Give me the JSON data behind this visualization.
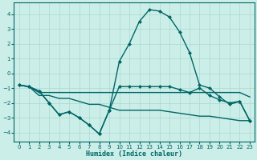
{
  "xlabel": "Humidex (Indice chaleur)",
  "x": [
    0,
    1,
    2,
    3,
    4,
    5,
    6,
    7,
    8,
    9,
    10,
    11,
    12,
    13,
    14,
    15,
    16,
    17,
    18,
    19,
    20,
    21,
    22,
    23
  ],
  "bell_line": [
    -0.8,
    -0.9,
    -1.2,
    -2.0,
    -2.8,
    -2.6,
    -3.0,
    -3.5,
    -4.1,
    -2.5,
    0.8,
    2.0,
    3.5,
    4.3,
    4.2,
    3.8,
    2.8,
    1.4,
    -0.8,
    -1.0,
    -1.6,
    -2.1,
    -1.9,
    -3.2
  ],
  "zigzag_line": [
    -0.8,
    -0.9,
    -1.2,
    -2.0,
    -2.8,
    -2.6,
    -3.0,
    -3.5,
    -4.1,
    -2.5,
    -0.9,
    -0.9,
    -0.9,
    -0.9,
    -0.9,
    -0.9,
    -1.1,
    -1.3,
    -1.0,
    -1.5,
    -1.8,
    -2.0,
    -1.9,
    -3.2
  ],
  "flat1": [
    -0.8,
    -0.9,
    -1.3,
    -1.3,
    -1.3,
    -1.3,
    -1.3,
    -1.3,
    -1.3,
    -1.3,
    -1.3,
    -1.3,
    -1.3,
    -1.3,
    -1.3,
    -1.3,
    -1.3,
    -1.3,
    -1.3,
    -1.3,
    -1.3,
    -1.3,
    -1.3,
    -1.6
  ],
  "flat2": [
    -0.8,
    -0.9,
    -1.5,
    -1.5,
    -1.7,
    -1.7,
    -1.9,
    -2.1,
    -2.1,
    -2.3,
    -2.5,
    -2.5,
    -2.5,
    -2.5,
    -2.5,
    -2.6,
    -2.7,
    -2.8,
    -2.9,
    -2.9,
    -3.0,
    -3.1,
    -3.2,
    -3.2
  ],
  "line_color": "#006666",
  "bg_color": "#cceee8",
  "grid_color": "#aad8d0",
  "ylim": [
    -4.6,
    4.8
  ],
  "xlim": [
    -0.5,
    23.5
  ],
  "yticks": [
    -4,
    -3,
    -2,
    -1,
    0,
    1,
    2,
    3,
    4
  ],
  "xticks": [
    0,
    1,
    2,
    3,
    4,
    5,
    6,
    7,
    8,
    9,
    10,
    11,
    12,
    13,
    14,
    15,
    16,
    17,
    18,
    19,
    20,
    21,
    22,
    23
  ],
  "marker": "D",
  "markersize": 2.5,
  "linewidth": 1.0
}
